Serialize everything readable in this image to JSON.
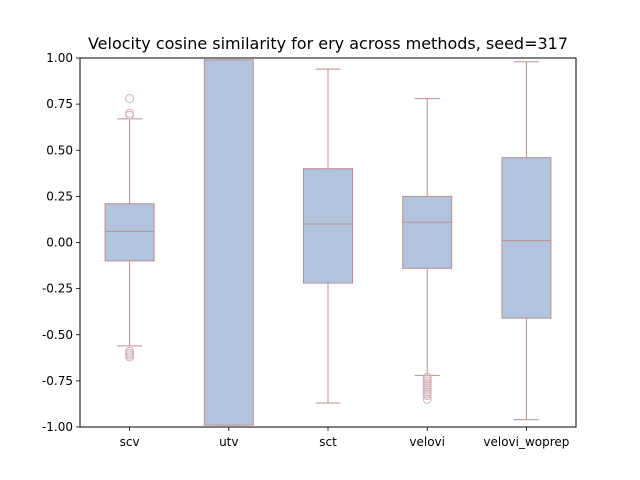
{
  "chart_data": {
    "type": "box",
    "title": "Velocity cosine similarity for ery across methods, seed=317",
    "xlabel": "",
    "ylabel": "",
    "ylim": [
      -1.0,
      1.0
    ],
    "yticks": [
      "-1.00",
      "-0.75",
      "-0.50",
      "-0.25",
      "0.00",
      "0.25",
      "0.50",
      "0.75",
      "1.00"
    ],
    "grid": false,
    "categories": [
      "scv",
      "utv",
      "sct",
      "velovi",
      "velovi_woprep"
    ],
    "boxes": [
      {
        "name": "scv",
        "whisker_low": -0.56,
        "q1": -0.1,
        "median": 0.06,
        "q3": 0.21,
        "whisker_high": 0.67,
        "outliers": [
          0.78,
          0.7,
          0.69,
          -0.59,
          -0.6,
          -0.61,
          -0.62
        ]
      },
      {
        "name": "utv",
        "whisker_low": -0.99,
        "q1": -0.99,
        "median": 0.99,
        "q3": 0.99,
        "whisker_high": 0.99,
        "outliers": []
      },
      {
        "name": "sct",
        "whisker_low": -0.87,
        "q1": -0.22,
        "median": 0.1,
        "q3": 0.4,
        "whisker_high": 0.94,
        "outliers": []
      },
      {
        "name": "velovi",
        "whisker_low": -0.72,
        "q1": -0.14,
        "median": 0.11,
        "q3": 0.25,
        "whisker_high": 0.78,
        "outliers": [
          -0.73,
          -0.74,
          -0.75,
          -0.76,
          -0.77,
          -0.78,
          -0.79,
          -0.8,
          -0.81,
          -0.82,
          -0.83,
          -0.85
        ]
      },
      {
        "name": "velovi_woprep",
        "whisker_low": -0.96,
        "q1": -0.41,
        "median": 0.01,
        "q3": 0.46,
        "whisker_high": 0.98,
        "outliers": []
      }
    ],
    "colors": {
      "box_fill": "#b0c4de",
      "line": "#bc8f8f",
      "outlier_edge": "#d8b4bc"
    }
  }
}
